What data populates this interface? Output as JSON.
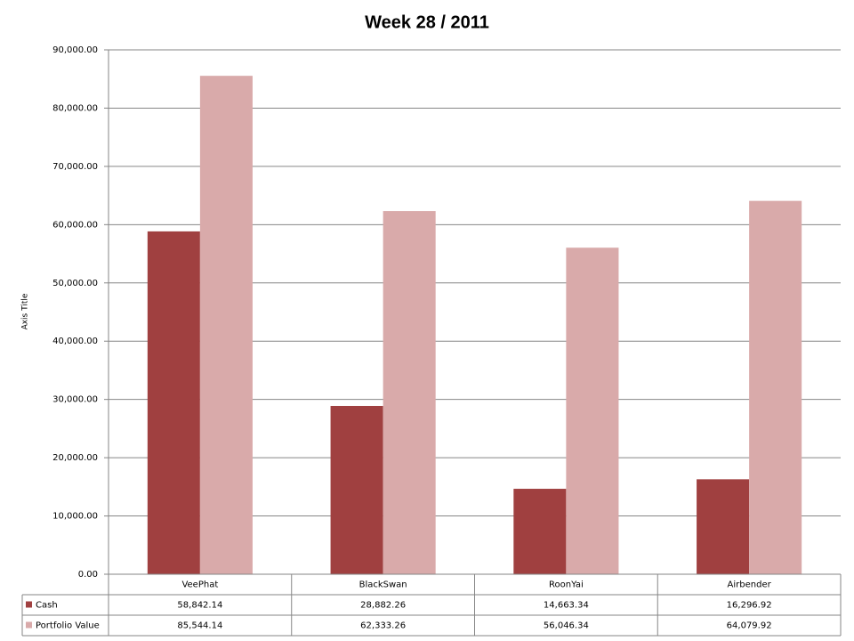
{
  "chart_data": {
    "type": "bar",
    "title": "Week 28 / 2011",
    "y_label": "Axis Title",
    "categories": [
      "VeePhat",
      "BlackSwan",
      "RoonYai",
      "Airbender"
    ],
    "series": [
      {
        "name": "Cash",
        "color": "#a04040",
        "values": [
          58842.14,
          28882.26,
          14663.34,
          16296.92
        ],
        "value_labels": [
          "58,842.14",
          "28,882.26",
          "14,663.34",
          "16,296.92"
        ]
      },
      {
        "name": "Portfolio Value",
        "color": "#d9aaaa",
        "values": [
          85544.14,
          62333.26,
          56046.34,
          64079.92
        ],
        "value_labels": [
          "85,544.14",
          "62,333.26",
          "56,046.34",
          "64,079.92"
        ]
      }
    ],
    "ylim": [
      0,
      90000
    ],
    "yticks": [
      {
        "value": 0,
        "label": "0.00"
      },
      {
        "value": 10000,
        "label": "10,000.00"
      },
      {
        "value": 20000,
        "label": "20,000.00"
      },
      {
        "value": 30000,
        "label": "30,000.00"
      },
      {
        "value": 40000,
        "label": "40,000.00"
      },
      {
        "value": 50000,
        "label": "50,000.00"
      },
      {
        "value": 60000,
        "label": "60,000.00"
      },
      {
        "value": 70000,
        "label": "70,000.00"
      },
      {
        "value": 80000,
        "label": "80,000.00"
      },
      {
        "value": 90000,
        "label": "90,000.00"
      }
    ],
    "grid": true
  }
}
